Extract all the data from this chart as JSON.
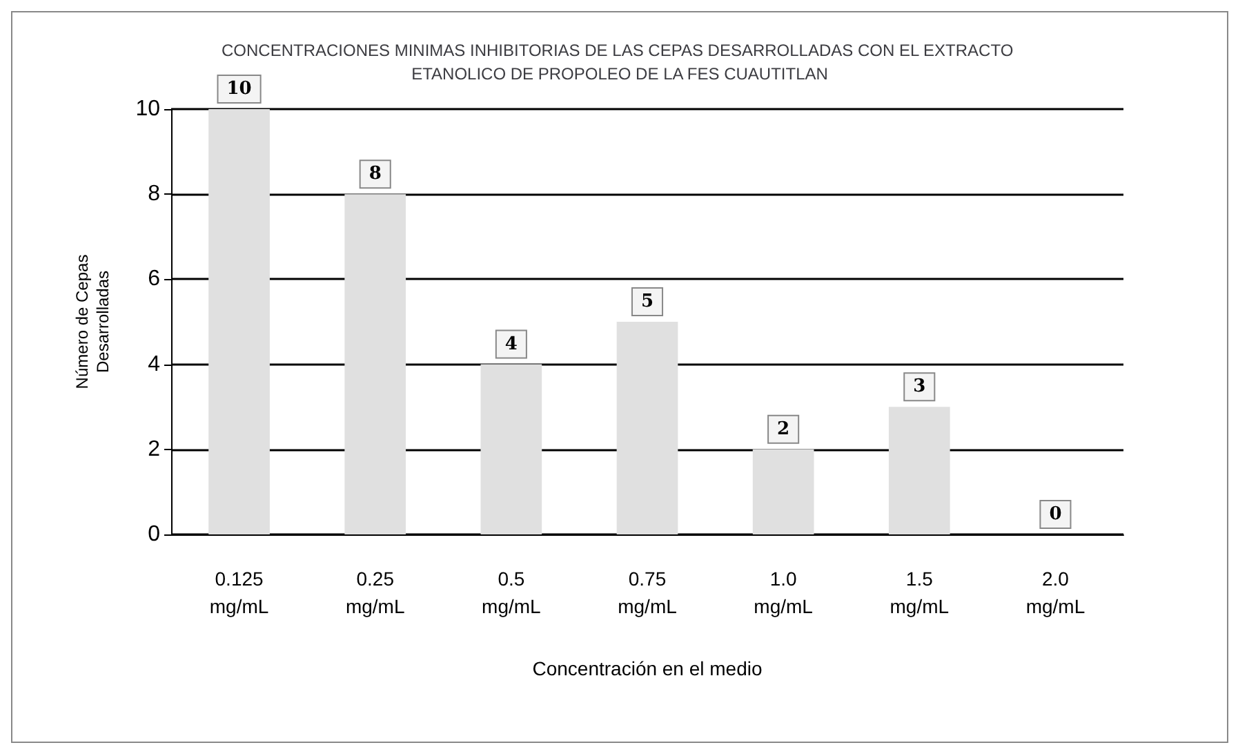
{
  "chart_data": {
    "type": "bar",
    "title": "CONCENTRACIONES MINIMAS INHIBITORIAS DE LAS CEPAS DESARROLLADAS CON EL EXTRACTO ETANOLICO DE PROPOLEO DE LA FES CUAUTITLAN",
    "categories": [
      "0.125\nmg/mL",
      "0.25\nmg/mL",
      "0.5\nmg/mL",
      "0.75\nmg/mL",
      "1.0\nmg/mL",
      "1.5\nmg/mL",
      "2.0\nmg/mL"
    ],
    "values": [
      10,
      8,
      4,
      5,
      2,
      3,
      0
    ],
    "color": "#e0e0e0",
    "xlabel": "Concentración en el medio",
    "ylabel": "Número de Cepas\nDesarrolladas",
    "ylim": [
      0,
      10
    ],
    "yticks": [
      0,
      2,
      4,
      6,
      8,
      10
    ],
    "grid": "y",
    "data_labels": true
  }
}
